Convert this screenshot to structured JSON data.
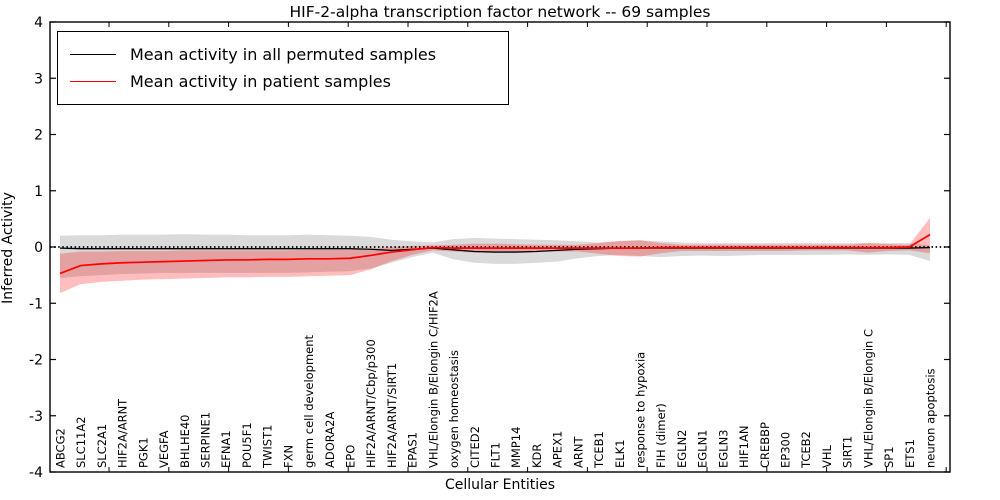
{
  "figure": {
    "title": "HIF-2-alpha transcription factor network -- 69 samples",
    "xlabel": "Cellular Entities",
    "ylabel": "Inferred Activity"
  },
  "legend": {
    "position": "upper left",
    "entries": [
      {
        "label": "Mean activity in all permuted samples",
        "color": "#000000"
      },
      {
        "label": "Mean activity in patient samples",
        "color": "#ff0000"
      }
    ]
  },
  "chart_data": {
    "type": "line",
    "title": "HIF-2-alpha transcription factor network -- 69 samples",
    "xlabel": "Cellular Entities",
    "ylabel": "Inferred Activity",
    "ylim": [
      -4,
      4
    ],
    "yticks": [
      4,
      3,
      2,
      1,
      0,
      -1,
      -2,
      -3,
      -4
    ],
    "grid": false,
    "zero_line": true,
    "legend_position": "upper left",
    "categories": [
      "ABCG2",
      "SLC11A2",
      "SLC2A1",
      "HIF2A/ARNT",
      "PGK1",
      "VEGFA",
      "BHLHE40",
      "SERPINE1",
      "EFNA1",
      "POU5F1",
      "TWIST1",
      "FXN",
      "germ cell development",
      "ADORA2A",
      "EPO",
      "HIF2A/ARNT/Cbp/p300",
      "HIF2A/ARNT/SIRT1",
      "EPAS1",
      "VHL/Elongin B/Elongin C/HIF2A",
      "oxygen homeostasis",
      "CITED2",
      "FLT1",
      "MMP14",
      "KDR",
      "APEX1",
      "ARNT",
      "TCEB1",
      "ELK1",
      "response to hypoxia",
      "FIH (dimer)",
      "EGLN2",
      "EGLN1",
      "EGLN3",
      "HIF1AN",
      "CREBBP",
      "EP300",
      "TCEB2",
      "VHL",
      "SIRT1",
      "VHL/Elongin B/Elongin C",
      "SP1",
      "ETS1",
      "neuron apoptosis"
    ],
    "series": [
      {
        "name": "Mean activity in all permuted samples",
        "color": "#000000",
        "values": [
          -0.02,
          -0.03,
          -0.03,
          -0.03,
          -0.03,
          -0.03,
          -0.03,
          -0.03,
          -0.03,
          -0.03,
          -0.03,
          -0.03,
          -0.03,
          -0.03,
          -0.03,
          -0.04,
          -0.06,
          -0.04,
          -0.02,
          -0.05,
          -0.08,
          -0.09,
          -0.09,
          -0.08,
          -0.06,
          -0.04,
          -0.03,
          -0.02,
          -0.02,
          -0.02,
          -0.02,
          -0.02,
          -0.02,
          -0.02,
          -0.02,
          -0.02,
          -0.02,
          -0.02,
          -0.02,
          -0.02,
          -0.02,
          -0.02,
          -0.01
        ]
      },
      {
        "name": "Mean activity in patient samples",
        "color": "#ff0000",
        "values": [
          -0.47,
          -0.33,
          -0.3,
          -0.28,
          -0.27,
          -0.26,
          -0.25,
          -0.24,
          -0.23,
          -0.23,
          -0.22,
          -0.22,
          -0.21,
          -0.21,
          -0.2,
          -0.15,
          -0.09,
          -0.05,
          -0.01,
          -0.02,
          -0.02,
          -0.02,
          -0.02,
          -0.02,
          -0.02,
          -0.02,
          -0.02,
          -0.02,
          -0.02,
          -0.01,
          -0.01,
          -0.01,
          -0.01,
          -0.01,
          -0.01,
          -0.01,
          -0.01,
          -0.01,
          -0.01,
          -0.01,
          -0.01,
          0.0,
          0.22
        ]
      }
    ],
    "bands": [
      {
        "name": "permuted-samples-range",
        "color": "#787878",
        "opacity": 0.27,
        "upper": [
          0.2,
          0.21,
          0.21,
          0.22,
          0.22,
          0.22,
          0.23,
          0.22,
          0.22,
          0.21,
          0.21,
          0.21,
          0.22,
          0.21,
          0.2,
          0.18,
          0.13,
          0.1,
          0.08,
          0.14,
          0.16,
          0.15,
          0.14,
          0.13,
          0.12,
          0.1,
          0.08,
          0.1,
          0.12,
          0.1,
          0.08,
          0.07,
          0.07,
          0.07,
          0.07,
          0.07,
          0.07,
          0.07,
          0.07,
          0.07,
          0.07,
          0.07,
          0.03
        ],
        "lower": [
          -0.55,
          -0.52,
          -0.5,
          -0.48,
          -0.47,
          -0.46,
          -0.46,
          -0.46,
          -0.46,
          -0.46,
          -0.46,
          -0.46,
          -0.45,
          -0.44,
          -0.43,
          -0.38,
          -0.28,
          -0.18,
          -0.1,
          -0.22,
          -0.28,
          -0.3,
          -0.3,
          -0.28,
          -0.26,
          -0.2,
          -0.16,
          -0.14,
          -0.16,
          -0.18,
          -0.16,
          -0.15,
          -0.16,
          -0.15,
          -0.14,
          -0.14,
          -0.14,
          -0.14,
          -0.13,
          -0.14,
          -0.13,
          -0.14,
          -0.25
        ]
      },
      {
        "name": "patient-samples-range",
        "color": "#ff0000",
        "opacity": 0.26,
        "upper": [
          -0.12,
          -0.08,
          -0.08,
          -0.07,
          -0.07,
          -0.07,
          -0.06,
          -0.06,
          -0.06,
          -0.06,
          -0.06,
          -0.06,
          -0.05,
          -0.05,
          -0.05,
          -0.03,
          0.0,
          0.02,
          0.03,
          0.04,
          0.06,
          0.06,
          0.05,
          0.04,
          0.04,
          0.04,
          0.07,
          0.11,
          0.12,
          0.07,
          0.04,
          0.04,
          0.04,
          0.04,
          0.04,
          0.04,
          0.04,
          0.04,
          0.04,
          0.07,
          0.05,
          0.04,
          0.52
        ],
        "lower": [
          -0.82,
          -0.66,
          -0.62,
          -0.6,
          -0.58,
          -0.57,
          -0.56,
          -0.55,
          -0.54,
          -0.54,
          -0.53,
          -0.53,
          -0.52,
          -0.51,
          -0.5,
          -0.4,
          -0.25,
          -0.14,
          -0.06,
          -0.08,
          -0.1,
          -0.1,
          -0.09,
          -0.08,
          -0.08,
          -0.08,
          -0.12,
          -0.16,
          -0.17,
          -0.11,
          -0.07,
          -0.07,
          -0.07,
          -0.07,
          -0.07,
          -0.07,
          -0.06,
          -0.06,
          -0.06,
          -0.1,
          -0.07,
          -0.06,
          -0.11
        ]
      }
    ]
  }
}
